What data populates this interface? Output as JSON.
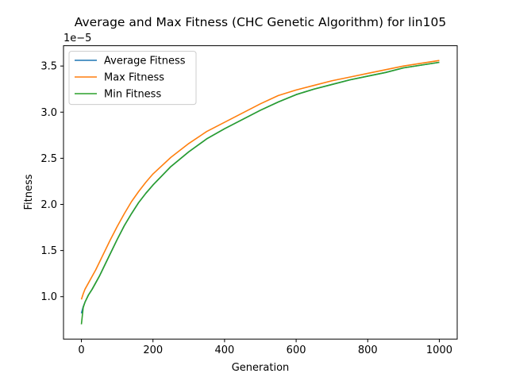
{
  "chart_data": {
    "type": "line",
    "title": "Average and Max Fitness (CHC Genetic Algorithm) for lin105",
    "xlabel": "Generation",
    "ylabel": "Fitness",
    "y_offset_label": "1e−5",
    "xlim": [
      -50,
      1050
    ],
    "ylim": [
      5.4e-06,
      3.72e-05
    ],
    "x_ticks": [
      0,
      200,
      400,
      600,
      800,
      1000
    ],
    "x_tick_labels": [
      "0",
      "200",
      "400",
      "600",
      "800",
      "1000"
    ],
    "y_ticks": [
      1e-05,
      1.5e-05,
      2e-05,
      2.5e-05,
      3e-05,
      3.5e-05
    ],
    "y_tick_labels": [
      "1.0",
      "1.5",
      "2.0",
      "2.5",
      "3.0",
      "3.5"
    ],
    "grid": false,
    "legend_position": "upper-left",
    "x": [
      0,
      5,
      10,
      20,
      30,
      40,
      50,
      60,
      80,
      100,
      120,
      140,
      160,
      180,
      200,
      250,
      300,
      350,
      400,
      450,
      500,
      550,
      600,
      650,
      700,
      750,
      800,
      850,
      900,
      950,
      1000
    ],
    "series": [
      {
        "name": "Average Fitness",
        "color": "#1f77b4",
        "values": [
          8.2e-06,
          8.9e-06,
          9.4e-06,
          1.02e-05,
          1.08e-05,
          1.15e-05,
          1.22e-05,
          1.3e-05,
          1.46e-05,
          1.62e-05,
          1.77e-05,
          1.9e-05,
          2.02e-05,
          2.12e-05,
          2.21e-05,
          2.41e-05,
          2.57e-05,
          2.71e-05,
          2.82e-05,
          2.92e-05,
          3.02e-05,
          3.11e-05,
          3.19e-05,
          3.25e-05,
          3.3e-05,
          3.35e-05,
          3.39e-05,
          3.43e-05,
          3.48e-05,
          3.51e-05,
          3.54e-05
        ]
      },
      {
        "name": "Max Fitness",
        "color": "#ff7f0e",
        "values": [
          9.7e-06,
          1.03e-05,
          1.08e-05,
          1.15e-05,
          1.22e-05,
          1.29e-05,
          1.37e-05,
          1.45e-05,
          1.61e-05,
          1.76e-05,
          1.9e-05,
          2.03e-05,
          2.14e-05,
          2.24e-05,
          2.33e-05,
          2.51e-05,
          2.66e-05,
          2.79e-05,
          2.89e-05,
          2.99e-05,
          3.09e-05,
          3.18e-05,
          3.24e-05,
          3.29e-05,
          3.34e-05,
          3.38e-05,
          3.42e-05,
          3.46e-05,
          3.5e-05,
          3.53e-05,
          3.56e-05
        ]
      },
      {
        "name": "Min Fitness",
        "color": "#2ca02c",
        "values": [
          7e-06,
          8.8e-06,
          9.4e-06,
          1.02e-05,
          1.08e-05,
          1.15e-05,
          1.22e-05,
          1.3e-05,
          1.46e-05,
          1.62e-05,
          1.77e-05,
          1.9e-05,
          2.02e-05,
          2.12e-05,
          2.21e-05,
          2.41e-05,
          2.57e-05,
          2.71e-05,
          2.82e-05,
          2.92e-05,
          3.02e-05,
          3.11e-05,
          3.19e-05,
          3.25e-05,
          3.3e-05,
          3.35e-05,
          3.39e-05,
          3.43e-05,
          3.48e-05,
          3.51e-05,
          3.54e-05
        ]
      }
    ]
  }
}
